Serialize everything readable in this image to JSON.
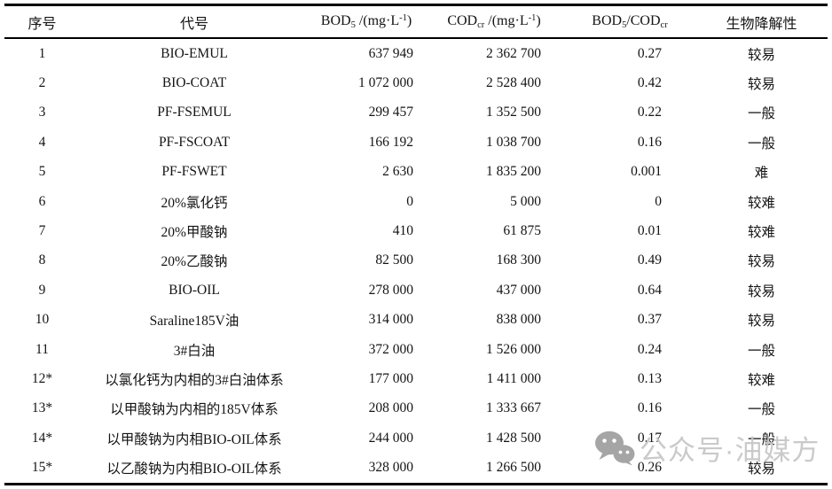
{
  "table": {
    "border_color": "#000000",
    "text_color": "#141414",
    "columns": [
      {
        "name": "index",
        "segments": [
          {
            "t": "序号"
          }
        ]
      },
      {
        "name": "code",
        "segments": [
          {
            "t": "代号"
          }
        ]
      },
      {
        "name": "bod5",
        "segments": [
          {
            "t": "BOD"
          },
          {
            "t": "5",
            "s": "sub"
          },
          {
            "t": " /(mg·L"
          },
          {
            "t": "-1",
            "s": "sup"
          },
          {
            "t": ")"
          }
        ]
      },
      {
        "name": "codcr",
        "segments": [
          {
            "t": "COD"
          },
          {
            "t": "cr",
            "s": "sub"
          },
          {
            "t": " /(mg·L"
          },
          {
            "t": "-1",
            "s": "sup"
          },
          {
            "t": ")"
          }
        ]
      },
      {
        "name": "bod5-codcr-ratio",
        "segments": [
          {
            "t": "BOD"
          },
          {
            "t": "5",
            "s": "sub"
          },
          {
            "t": "/COD"
          },
          {
            "t": "cr",
            "s": "sub"
          }
        ]
      },
      {
        "name": "biodegradability",
        "segments": [
          {
            "t": "生物降解性"
          }
        ]
      }
    ],
    "rows": [
      [
        "1",
        "BIO-EMUL",
        "637 949",
        "2 362 700",
        "0.27",
        "较易"
      ],
      [
        "2",
        "BIO-COAT",
        "1 072 000",
        "2 528 400",
        "0.42",
        "较易"
      ],
      [
        "3",
        "PF-FSEMUL",
        "299 457",
        "1 352 500",
        "0.22",
        "一般"
      ],
      [
        "4",
        "PF-FSCOAT",
        "166 192",
        "1 038 700",
        "0.16",
        "一般"
      ],
      [
        "5",
        "PF-FSWET",
        "2 630",
        "1 835 200",
        "0.001",
        "难"
      ],
      [
        "6",
        "20%氯化钙",
        "0",
        "5 000",
        "0",
        "较难"
      ],
      [
        "7",
        "20%甲酸钠",
        "410",
        "61 875",
        "0.01",
        "较难"
      ],
      [
        "8",
        "20%乙酸钠",
        "82 500",
        "168 300",
        "0.49",
        "较易"
      ],
      [
        "9",
        "BIO-OIL",
        "278 000",
        "437 000",
        "0.64",
        "较易"
      ],
      [
        "10",
        "Saraline185V油",
        "314 000",
        "838 000",
        "0.37",
        "较易"
      ],
      [
        "11",
        "3#白油",
        "372 000",
        "1 526 000",
        "0.24",
        "一般"
      ],
      [
        "12*",
        "以氯化钙为内相的3#白油体系",
        "177 000",
        "1 411 000",
        "0.13",
        "较难"
      ],
      [
        "13*",
        "以甲酸钠为内相的185V体系",
        "208 000",
        "1 333 667",
        "0.16",
        "一般"
      ],
      [
        "14*",
        "以甲酸钠为内相BIO-OIL体系",
        "244 000",
        "1 428 500",
        "0.17",
        "一般"
      ],
      [
        "15*",
        "以乙酸钠为内相BIO-OIL体系",
        "328 000",
        "1 266 500",
        "0.26",
        "较易"
      ]
    ]
  },
  "watermark": {
    "icon": "wechat-icon",
    "text": "公众号·油媒方",
    "text_color": "#c6c6c6",
    "icon_color": "#9e9e9e"
  }
}
